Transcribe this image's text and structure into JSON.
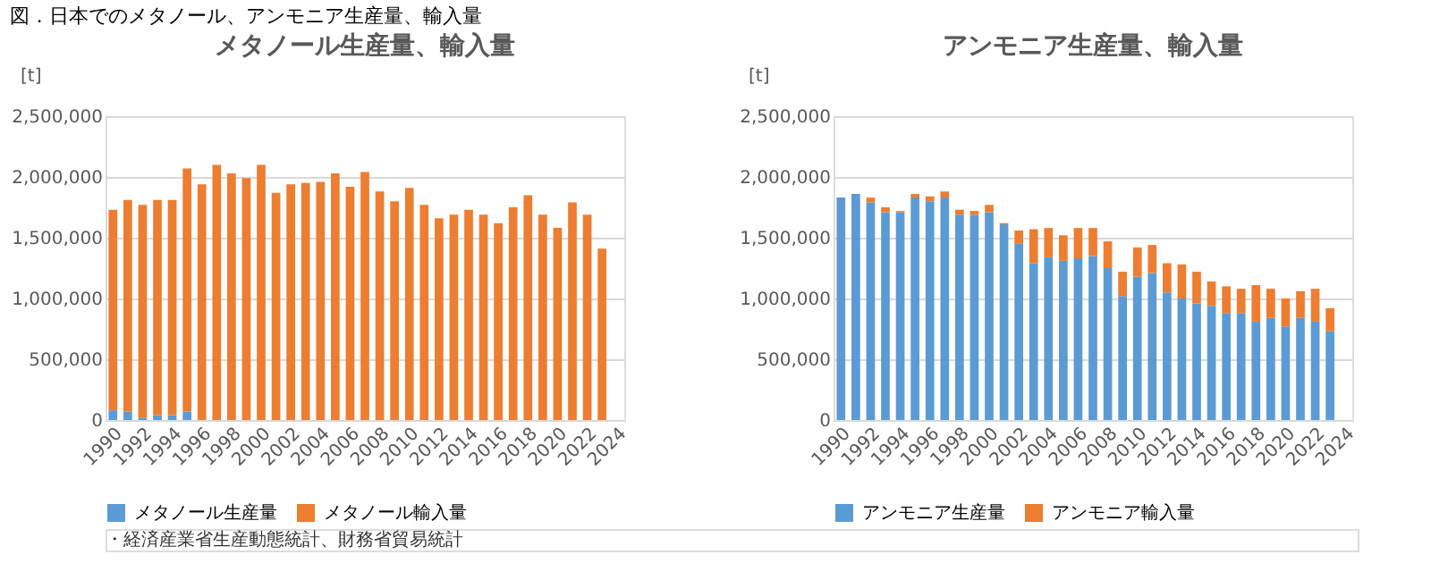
{
  "chart_data": [
    {
      "type": "bar",
      "title": "メタノール生産量、輸入量",
      "ylabel": "[t]",
      "stacked": true,
      "grid": "y",
      "legend": "bottom",
      "annotations": [
        "図．日本でのメタノール、アンモニア生産量、輸入量",
        "・経済産業省生産動態統計、財務省貿易統計"
      ],
      "categories": [
        "1990",
        null,
        "1992",
        null,
        "1994",
        null,
        "1996",
        null,
        "1998",
        null,
        "2000",
        null,
        "2002",
        null,
        "2004",
        null,
        "2006",
        null,
        "2008",
        null,
        "2010",
        null,
        "2012",
        null,
        "2014",
        null,
        "2016",
        null,
        "2018",
        null,
        "2020",
        null,
        "2022",
        null,
        "2024"
      ],
      "ylim": [
        0,
        2500000
      ],
      "yticks": [
        0,
        {
          "value": 500000,
          "label": "500,000"
        },
        {
          "value": 1000000,
          "label": "1,000,000"
        },
        {
          "value": 1500000,
          "label": "1,500,000"
        },
        {
          "value": 2000000,
          "label": "2,000,000"
        },
        {
          "value": 2500000,
          "label": "2,500,000"
        }
      ],
      "series": [
        {
          "name": "メタノール生産量",
          "color": "#5b9bd5",
          "values": [
            80000,
            70000,
            20000,
            40000,
            40000,
            70000,
            null,
            null,
            null,
            null,
            null,
            null,
            null,
            null,
            null,
            null,
            null,
            null,
            null,
            null,
            null,
            null,
            null,
            null,
            null,
            null,
            null,
            null,
            null,
            null,
            null,
            null,
            null,
            null,
            null
          ]
        },
        {
          "name": "メタノール輸入量",
          "color": "#ed7d31",
          "values": [
            1650000,
            1740000,
            1750000,
            1770000,
            1770000,
            2000000,
            1940000,
            2100000,
            2030000,
            1990000,
            2100000,
            1870000,
            1940000,
            1950000,
            1960000,
            2030000,
            1920000,
            2040000,
            1880000,
            1800000,
            1910000,
            1770000,
            1660000,
            1690000,
            1730000,
            1690000,
            1620000,
            1750000,
            1850000,
            1690000,
            1580000,
            1790000,
            1690000,
            1410000,
            null
          ]
        }
      ]
    },
    {
      "type": "bar",
      "title": "アンモニア生産量、輸入量",
      "ylabel": "[t]",
      "stacked": true,
      "grid": "y",
      "legend": "bottom",
      "categories": [
        "1990",
        null,
        "1992",
        null,
        "1994",
        null,
        "1996",
        null,
        "1998",
        null,
        "2000",
        null,
        "2002",
        null,
        "2004",
        null,
        "2006",
        null,
        "2008",
        null,
        "2010",
        null,
        "2012",
        null,
        "2014",
        null,
        "2016",
        null,
        "2018",
        null,
        "2020",
        null,
        "2022",
        null,
        "2024"
      ],
      "ylim": [
        0,
        2500000
      ],
      "yticks": [
        0,
        {
          "value": 500000,
          "label": "500,000"
        },
        {
          "value": 1000000,
          "label": "1,000,000"
        },
        {
          "value": 1500000,
          "label": "1,500,000"
        },
        {
          "value": 2000000,
          "label": "2,000,000"
        },
        {
          "value": 2500000,
          "label": "2,500,000"
        }
      ],
      "series": [
        {
          "name": "アンモニア生産量",
          "color": "#5b9bd5",
          "values": [
            1830000,
            1860000,
            1790000,
            1710000,
            1710000,
            1830000,
            1800000,
            1830000,
            1690000,
            1690000,
            1710000,
            1610000,
            1450000,
            1290000,
            1340000,
            1310000,
            1330000,
            1350000,
            1250000,
            1020000,
            1180000,
            1210000,
            1050000,
            1000000,
            960000,
            940000,
            880000,
            880000,
            810000,
            840000,
            770000,
            840000,
            810000,
            730000,
            null
          ]
        },
        {
          "name": "アンモニア輸入量",
          "color": "#ed7d31",
          "values": [
            null,
            null,
            40000,
            40000,
            10000,
            30000,
            40000,
            50000,
            40000,
            30000,
            60000,
            10000,
            110000,
            280000,
            240000,
            210000,
            250000,
            230000,
            220000,
            200000,
            240000,
            230000,
            240000,
            280000,
            260000,
            200000,
            220000,
            200000,
            300000,
            240000,
            230000,
            220000,
            270000,
            190000,
            null
          ]
        }
      ]
    }
  ]
}
